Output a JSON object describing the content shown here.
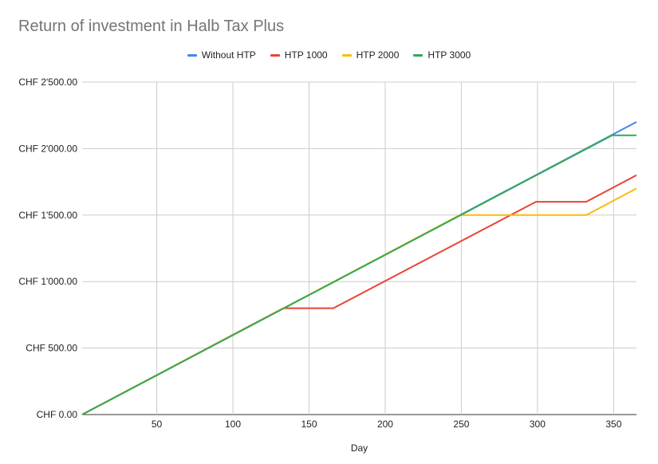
{
  "chart_data": {
    "type": "line",
    "title": "Return of investment in Halb Tax Plus",
    "xlabel": "Day",
    "ylabel": "",
    "xlim": [
      1,
      365
    ],
    "ylim": [
      0,
      2500
    ],
    "x_ticks": [
      50,
      100,
      150,
      200,
      250,
      300,
      350
    ],
    "y_ticks": [
      0,
      500,
      1000,
      1500,
      2000,
      2500
    ],
    "y_tick_labels": [
      "CHF 0.00",
      "CHF 500.00",
      "CHF 1'000.00",
      "CHF 1'500.00",
      "CHF 2'000.00",
      "CHF 2'500.00"
    ],
    "grid": true,
    "legend_position": "top",
    "series": [
      {
        "name": "Without HTP",
        "color": "#4285f4",
        "points": [
          [
            1,
            0
          ],
          [
            365,
            2200
          ]
        ]
      },
      {
        "name": "HTP 1000",
        "color": "#ea4335",
        "points": [
          [
            1,
            0
          ],
          [
            133,
            800
          ],
          [
            166,
            800
          ],
          [
            299,
            1600
          ],
          [
            332,
            1600
          ],
          [
            365,
            1800
          ]
        ]
      },
      {
        "name": "HTP 2000",
        "color": "#fbbc04",
        "points": [
          [
            1,
            0
          ],
          [
            249,
            1500
          ],
          [
            332,
            1500
          ],
          [
            365,
            1700
          ]
        ]
      },
      {
        "name": "HTP 3000",
        "color": "#34a853",
        "points": [
          [
            1,
            0
          ],
          [
            349,
            2100
          ],
          [
            365,
            2100
          ]
        ]
      }
    ]
  }
}
